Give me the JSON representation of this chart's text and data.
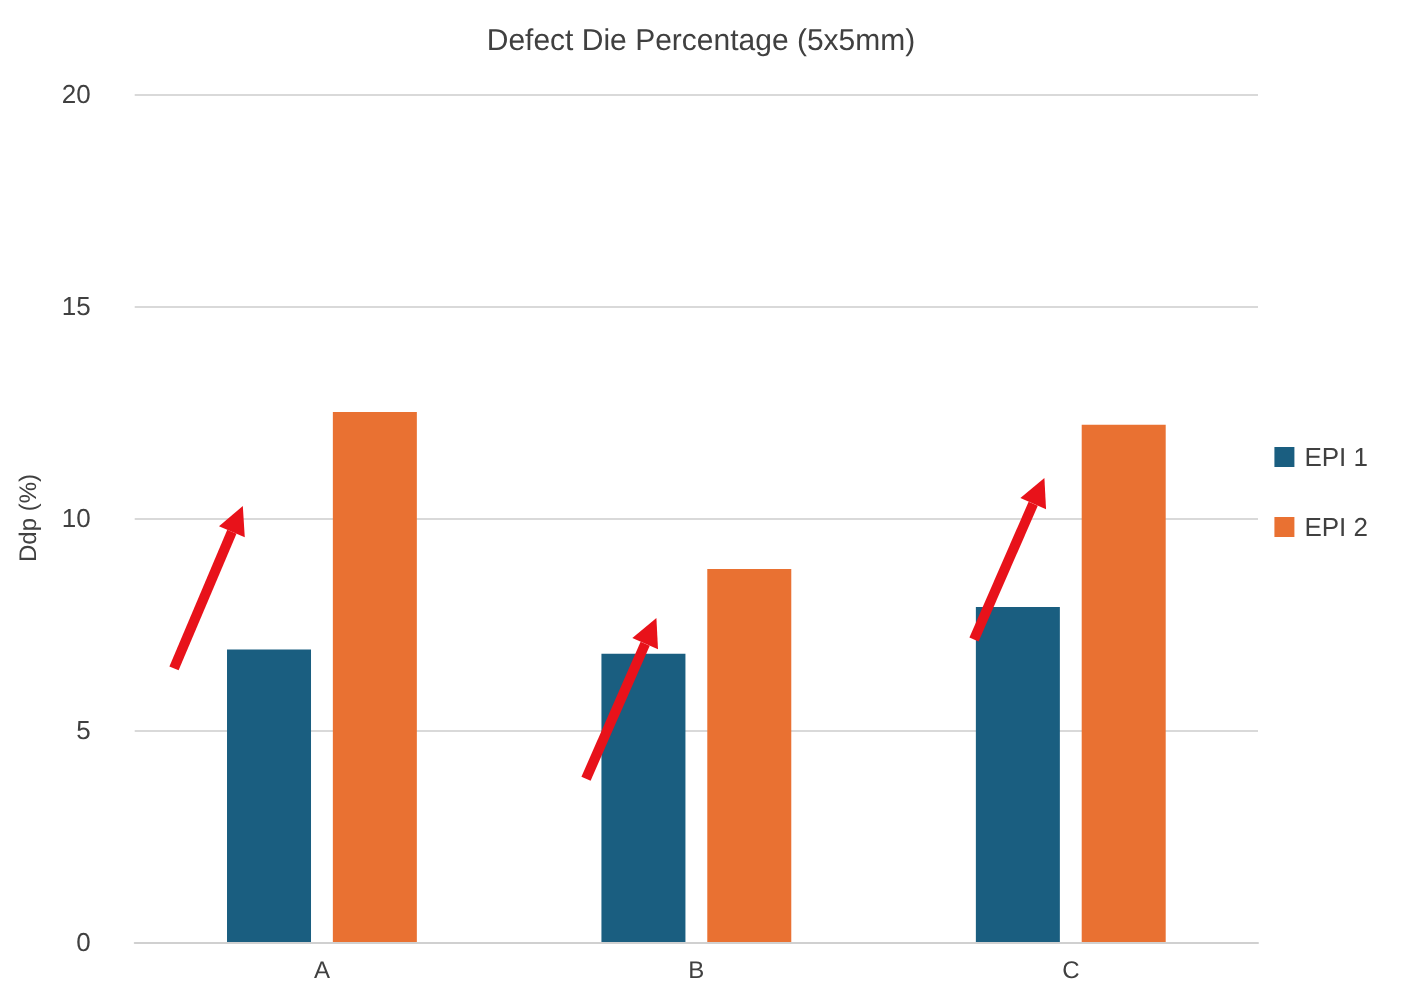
{
  "chart_data": {
    "type": "bar",
    "title": "Defect Die Percentage (5x5mm)",
    "ylabel": "Ddp (%)",
    "categories": [
      "A",
      "B",
      "C"
    ],
    "series": [
      {
        "name": "EPI 1",
        "color": "#1a5e80",
        "values": [
          6.9,
          6.8,
          7.9
        ]
      },
      {
        "name": "EPI 2",
        "color": "#e97132",
        "values": [
          12.5,
          8.8,
          12.2
        ]
      }
    ],
    "ylim": [
      0,
      20
    ],
    "yticks": [
      0,
      5,
      10,
      15,
      20
    ],
    "grid": "y",
    "legend": "right"
  }
}
